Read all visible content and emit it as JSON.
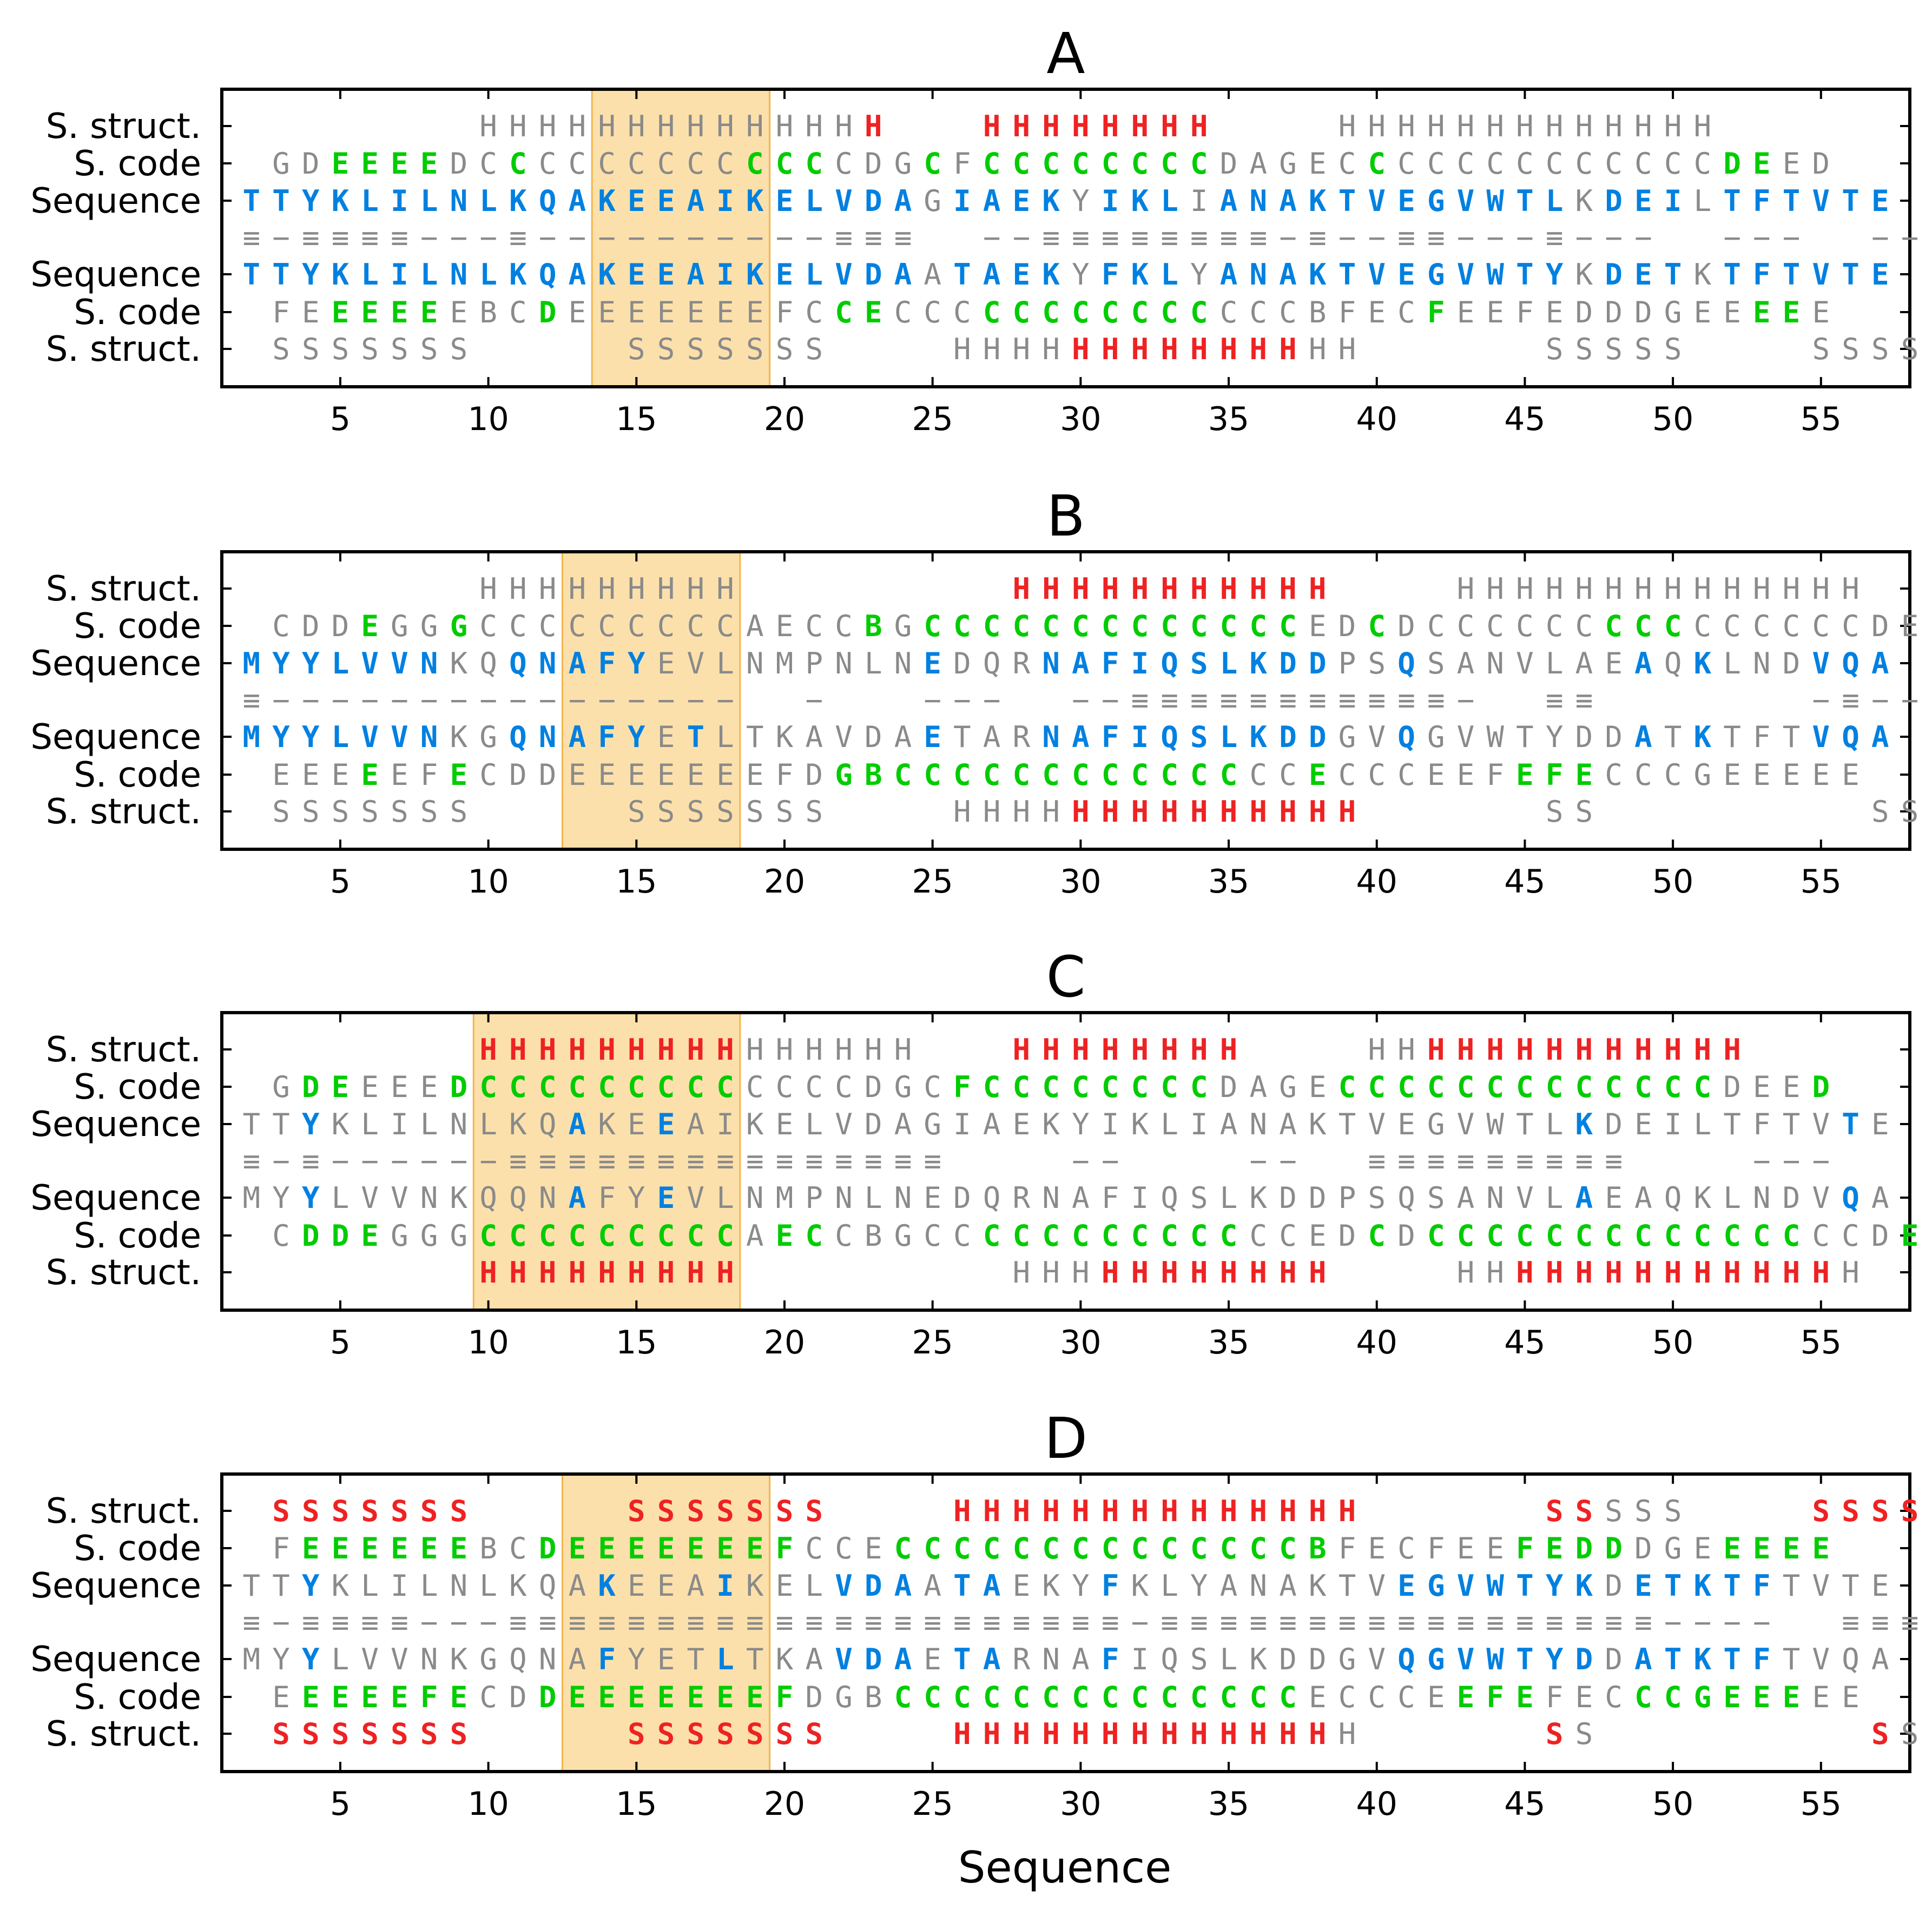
{
  "chart_data": {
    "type": "table",
    "xlabel": "Sequence",
    "x_ticks": [
      5,
      10,
      15,
      20,
      25,
      30,
      35,
      40,
      45,
      50,
      55
    ],
    "xlim": [
      1,
      58
    ],
    "row_labels": [
      "S. struct.",
      "S. code",
      "Sequence",
      "",
      "Sequence",
      "S. code",
      "S. struct."
    ],
    "colors": {
      "grey": "#8a8a8a",
      "green": "#00cc00",
      "blue": "#0080e0",
      "red": "#ee2222",
      "highlight": "#fbd68f",
      "highlight_edge": "#f2b54c"
    },
    "panels": [
      {
        "title": "A",
        "highlight": [
          13.5,
          19.5
        ],
        "rows": [
          {
            "start": 10,
            "text": "HHHHHHHHHHHHHH   HHHHHHHH    HHHHHHHHHHHHH",
            "color": "gggggggggggggr   rrrrrrrr    ggggggggggggg"
          },
          {
            "start": 3,
            "text": "GDEEEEDCCCCCCCCCCCCCDGCFCCCCCCCCDAGECCCCCCCCCCCCCDEED",
            "color": "ggGGGGggGgggggggGGGgggGgGGGGGGGGgggggGgggggggggggGGg"
          },
          {
            "start": 2,
            "text": "TTYKLILNLKQAKEEAIKELVDAGIAEKYIKLIANAKTVEGVWTLKDEILTFTVTE",
            "color": "BBBBBBBBBBBBBBBBBBBBBBBgBBBBgBBBgBBBBBBBBBBBBgBBBgBBBBBB"
          },
          {
            "start": 2,
            "text": "≡−≡≡≡≡−−−≡−−−−−−−−−−≡≡≡  −−≡≡≡≡≡≡≡≡−≡−−≡≡−−−≡−−−  −−−  −−−−≡≡",
            "color": ""
          },
          {
            "start": 2,
            "text": "TTYKLILNLKQAKEEAIKELVDAATAEKYFKLYANAKTVEGVWTYKDETKTFTVTE",
            "color": "BBBBBBBBBBBBBBBBBBBBBBBgBBBBgBBBgBBBBBBBBBBBBgBBBgBBBBBB"
          },
          {
            "start": 3,
            "text": "FEEEEEEBCDEEEEEEEFCCECCCCCCCCCCCCCCBFECFEEFEDDDGEEEEE",
            "color": "ggGGGGgggGgggggggggGGgggGGGGGGGGgggggggGggggggggggGGg"
          },
          {
            "start": 3,
            "text": "SSSSSSS     SSSSSSS    HHHHHHHHHHHHHH      SSSSS    SSSSS",
            "color": "ggggggg     ggggggg    ggggrrrrrrrrgg      ggggg    ggggg"
          }
        ]
      },
      {
        "title": "B",
        "highlight": [
          12.5,
          18.5
        ],
        "rows": [
          {
            "start": 10,
            "text": "HHHHHHHHH         HHHHHHHHHHH    HHHHHHHHHHHHHH",
            "color": "ggggggggg         rrrrrrrrrrr    gggggggggggggg"
          },
          {
            "start": 3,
            "text": "CDDEGGGCCCCCCCCCAECCBGCCCCCCCCCCCCCEDCDCCCCCCCCCCCCCCCDE",
            "color": "gggGggGgggggggggggggGgGGGGGGGGGGGGGggGgggggggGGGgggggggg"
          },
          {
            "start": 2,
            "text": "MYYLVVNKQQNAFYEVLNMPNLNEDQRNAFIQSLKDDPSQSANVLAEAQKLNDVQA",
            "color": "BBBBBBBggBBBBBgggggggggBgggBBBBBBBBBBggBgggggggBgBgggBBB"
          },
          {
            "start": 2,
            "text": "≡−−−−−−−−−−−−−−−−  −   −−−  −−≡≡≡≡≡≡≡≡≡≡≡−  ≡≡       −≡−−      −−−",
            "color": ""
          },
          {
            "start": 2,
            "text": "MYYLVVNKGQNAFYETLTKAVDAETARNAFIQSLKDDGVQGVWTYDDATKTFTVQA",
            "color": "BBBBBBBggBBBBBgBgggggggBgggBBBBBBBBBBggBgggggggBgBgggBBB"
          },
          {
            "start": 3,
            "text": "EEEEEFECDDEEEEEEEFDGBCCCCCCCCCCCCCCECCCEEFEFECCCGEEEEE",
            "color": "gggGggGggggggggggggGGGGGGGGGGGGGGggGggggggGGGgggggg"
          },
          {
            "start": 3,
            "text": "SSSSSSS     SSSSSSS    HHHHHHHHHHHHHH      SS         SS  SS",
            "color": "ggggggg     ggggggg    ggggrrrrrrrrrrgg    gg         gg  gg"
          }
        ]
      },
      {
        "title": "C",
        "highlight": [
          9.5,
          18.5
        ],
        "rows": [
          {
            "start": 10,
            "text": "HHHHHHHHHHHHHHH   HHHHHHHH    HHHHHHHHHHHHH",
            "color": "rrrrrrrrrgggggg   rrrrrrrr    ggrrrrrrrrrrr"
          },
          {
            "start": 3,
            "text": "GDEEEEDCCCCCCCCCCCCCDGCFCCCCCCCCDAGECCCCCCCCCCCCCDEED",
            "color": "gGGgggGGGGGGGGGGgggggggGGGGGGGGGggggGGGGGGGGGGGGGgggG"
          },
          {
            "start": 2,
            "text": "TTYKLILNLKQAKEEAIKELVDAGIAEKYIKLIANAKTVEGVWTLKDEILTFTVTE",
            "color": "ggBggggggggBggBggggggggggggggggggggggggggggggBggggggggBgg"
          },
          {
            "start": 2,
            "text": "≡−≡−−−−−−≡≡≡≡≡≡≡≡≡≡≡≡≡≡≡    −−    −−  ≡≡≡≡≡≡≡≡≡    −−−    ≡≡≡≡≡≡≡≡≡≡≡     −−−",
            "color": ""
          },
          {
            "start": 2,
            "text": "MYYLVVNKQQNAFYEVLNMPNLNEDQRNAFIQSLKDDPSQSANVLAEAQKLNDVQA",
            "color": "ggBggggggggBggBggggggggggggggggggggggggggggggBggggggggBgg"
          },
          {
            "start": 3,
            "text": "CDDEGGGCCCCCCCCCAECCBGCCCCCCCCCCCCCEDCDCCCCCCCCCCCCCCCDE",
            "color": "gGGGgggGGGGGGGGGgGGgggggGGGGGGGGGggggGgGGGGGGGGGGGGGgggGg"
          },
          {
            "start": 10,
            "text": "HHHHHHHHH         HHHHHHHHHHH    HHHHHHHHHHHHHH",
            "color": "rrrrrrrrr         gggrrrrrrrrgg    rrrrrrrrrrrggg"
          }
        ]
      },
      {
        "title": "D",
        "highlight": [
          12.5,
          19.5
        ],
        "rows": [
          {
            "start": 3,
            "text": "SSSSSSS     SSSSSSS    HHHHHHHHHHHHHH      SSSSS    SSSSS",
            "color": "rrrrrrr     rrrrrrr    rrrrrrrrrrrrrr      rrggg    rrrrr"
          },
          {
            "start": 3,
            "text": "FEEEEEEBCDEEEEEEEFCCECCCCCCCCCCCCCCBFECFEEFEDDDGEEEEE",
            "color": "gGGGGGGggGGGGGGGGGgggGGGGGGGGGGGGGGGggggggGGGGgggGGGGGG"
          },
          {
            "start": 2,
            "text": "TTYKLILNLKQAKEEAIKELVDAATAEKYFKLYANAKTVEGVWTYKDETKTFTVTE",
            "color": "ggBgggggggggBgggBgggBBBgBBgggBgggggggggBBBBBBBgBBBBBggg"
          },
          {
            "start": 2,
            "text": "≡−≡≡≡≡−−−≡≡≡≡≡≡≡≡≡≡≡≡≡≡≡≡≡≡≡≡≡−≡≡≡≡≡≡≡≡≡≡≡≡≡≡≡≡≡−−−−  ≡≡≡≡≡≡≡≡≡−≡≡≡≡≡≡≡≡≡≡",
            "color": ""
          },
          {
            "start": 2,
            "text": "MYYLVVNKGQNAFYETLTKAVDAETARNAFIQSLKDDGVQGVWTYDDATKTFTVQA",
            "color": "ggBgggggggggBgggBgggBBBgBBgggBgggggggggBBBBBBBgBBBBBggg"
          },
          {
            "start": 3,
            "text": "EEEEEFECDDEEEEEEEFDGBCCCCCCCCCCCCCCECCCEEFEFECCCGEEEEE",
            "color": "gGGGGGGggGGGGGGGGGgggGGGGGGGGGGGGGGgggggGGGgggGGGGGG"
          },
          {
            "start": 3,
            "text": "SSSSSSS     SSSSSSS    HHHHHHHHHHHHHH      SS         SS  SS",
            "color": "rrrrrrr     rrrrrrr    rrrrrrrrrrrrrgg    rr         rr  rr"
          }
        ]
      }
    ]
  }
}
